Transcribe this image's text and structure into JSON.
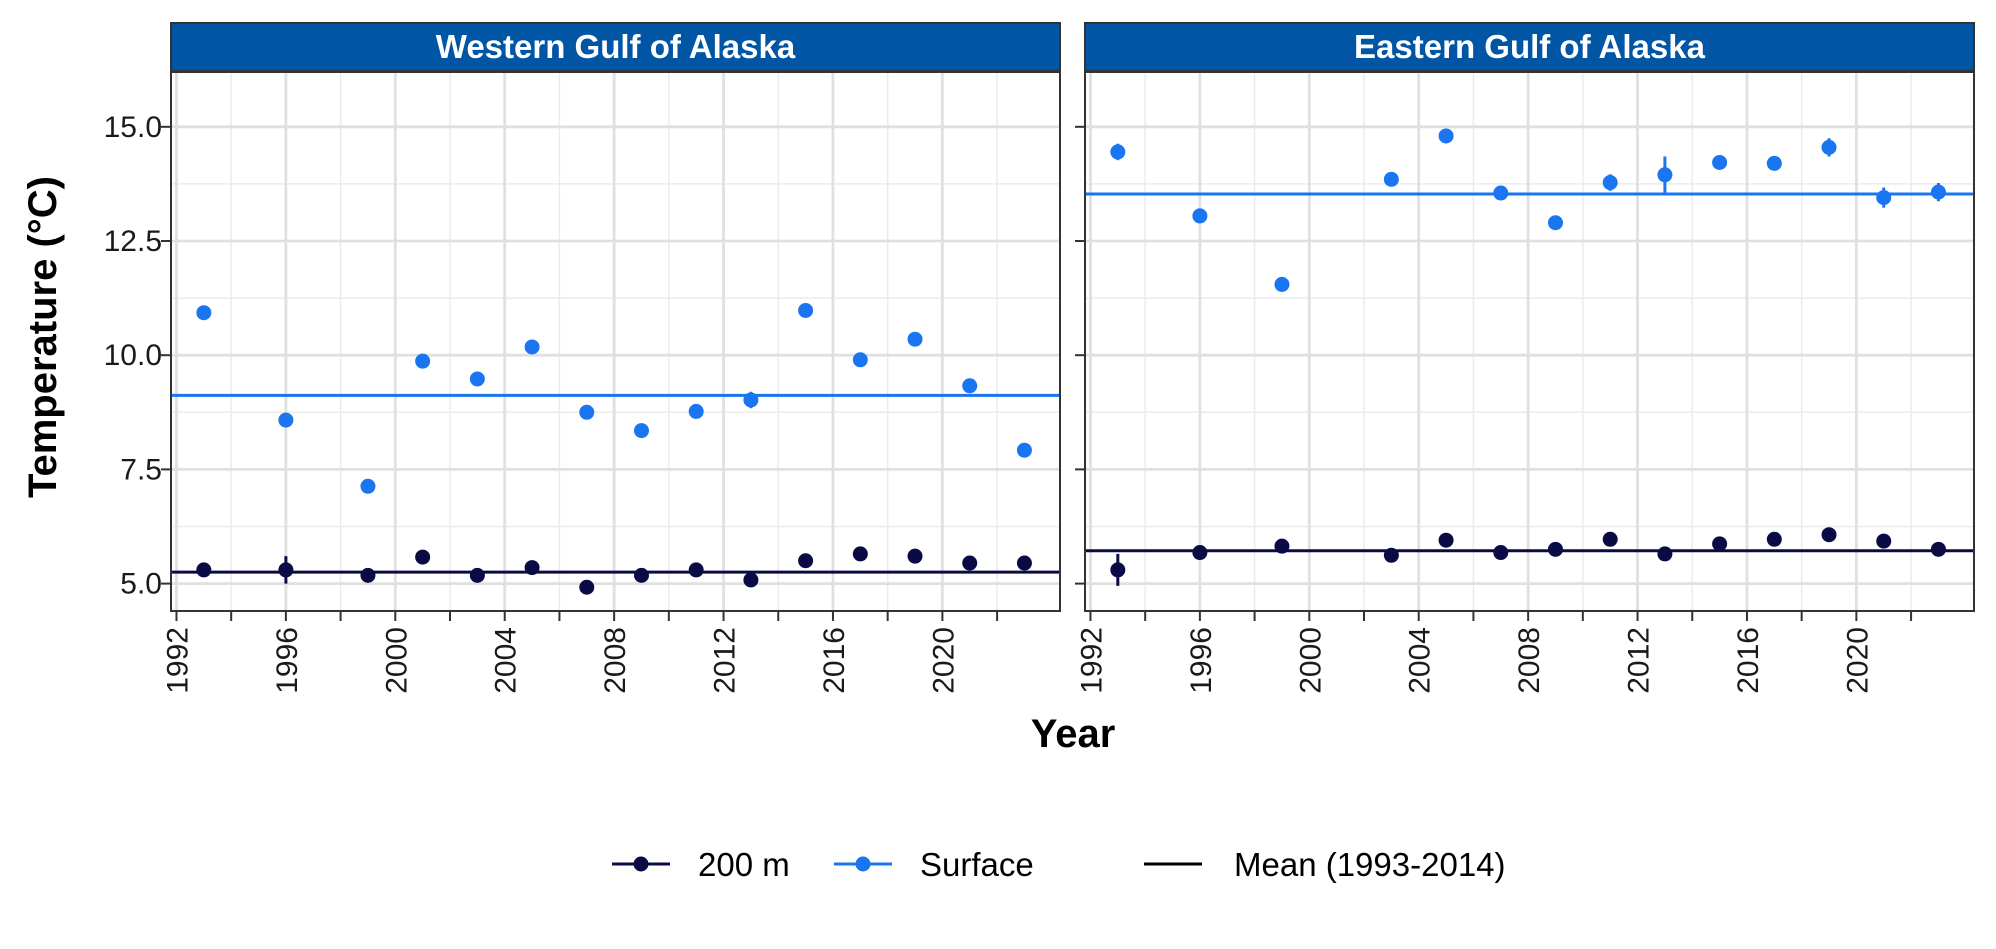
{
  "chart_data": {
    "type": "scatter",
    "ylabel": "Temperature (°C)",
    "xlabel": "Year",
    "xlim": [
      1991.8,
      2024.3
    ],
    "ylim": [
      4.4,
      16.2
    ],
    "yticks": [
      5.0,
      7.5,
      10.0,
      12.5,
      15.0
    ],
    "ytick_labels": [
      "5.0",
      "7.5",
      "10.0",
      "12.5",
      "15.0"
    ],
    "xticks": [
      1992,
      1996,
      2000,
      2004,
      2008,
      2012,
      2016,
      2020
    ],
    "xtick_labels": [
      "1992",
      "1996",
      "2000",
      "2004",
      "2008",
      "2012",
      "2016",
      "2020"
    ],
    "grid": true,
    "legend_position": "bottom",
    "colors": {
      "surface": "#1a75f0",
      "deep": "#0a0a45",
      "strip": "#0055a5"
    },
    "legend": [
      {
        "label": "200 m",
        "key": "deep"
      },
      {
        "label": "Surface",
        "key": "surface"
      },
      {
        "label": "Mean (1993-2014)",
        "key": "mean"
      }
    ],
    "panels": [
      {
        "title": "Western Gulf of Alaska",
        "series": [
          {
            "name": "Surface",
            "points": [
              {
                "x": 1993,
                "y": 10.93,
                "err": 0.08
              },
              {
                "x": 1996,
                "y": 8.58,
                "err": 0.08
              },
              {
                "x": 1999,
                "y": 7.13,
                "err": 0.15
              },
              {
                "x": 2001,
                "y": 9.87,
                "err": 0.1
              },
              {
                "x": 2003,
                "y": 9.48,
                "err": 0.08
              },
              {
                "x": 2005,
                "y": 10.18,
                "err": 0.15
              },
              {
                "x": 2007,
                "y": 8.75,
                "err": 0.08
              },
              {
                "x": 2009,
                "y": 8.35,
                "err": 0.12
              },
              {
                "x": 2011,
                "y": 8.77,
                "err": 0.12
              },
              {
                "x": 2013,
                "y": 9.02,
                "err": 0.18
              },
              {
                "x": 2015,
                "y": 10.98,
                "err": 0.08
              },
              {
                "x": 2017,
                "y": 9.9,
                "err": 0.08
              },
              {
                "x": 2019,
                "y": 10.35,
                "err": 0.15
              },
              {
                "x": 2021,
                "y": 9.33,
                "err": 0.12
              },
              {
                "x": 2023,
                "y": 7.92,
                "err": 0.08
              }
            ]
          },
          {
            "name": "200 m",
            "points": [
              {
                "x": 1993,
                "y": 5.3,
                "err": 0.05
              },
              {
                "x": 1996,
                "y": 5.3,
                "err": 0.3
              },
              {
                "x": 1999,
                "y": 5.18,
                "err": 0.05
              },
              {
                "x": 2001,
                "y": 5.58,
                "err": 0.05
              },
              {
                "x": 2003,
                "y": 5.18,
                "err": 0.05
              },
              {
                "x": 2005,
                "y": 5.35,
                "err": 0.05
              },
              {
                "x": 2007,
                "y": 4.92,
                "err": 0.05
              },
              {
                "x": 2009,
                "y": 5.18,
                "err": 0.05
              },
              {
                "x": 2011,
                "y": 5.3,
                "err": 0.05
              },
              {
                "x": 2013,
                "y": 5.08,
                "err": 0.05
              },
              {
                "x": 2015,
                "y": 5.5,
                "err": 0.05
              },
              {
                "x": 2017,
                "y": 5.65,
                "err": 0.05
              },
              {
                "x": 2019,
                "y": 5.6,
                "err": 0.05
              },
              {
                "x": 2021,
                "y": 5.45,
                "err": 0.05
              },
              {
                "x": 2023,
                "y": 5.45,
                "err": 0.05
              }
            ]
          }
        ],
        "means": {
          "surface": 9.12,
          "deep": 5.25
        }
      },
      {
        "title": "Eastern Gulf of Alaska",
        "series": [
          {
            "name": "Surface",
            "points": [
              {
                "x": 1993,
                "y": 14.45,
                "err": 0.18
              },
              {
                "x": 1996,
                "y": 13.05,
                "err": 0.08
              },
              {
                "x": 1999,
                "y": 11.55,
                "err": 0.08
              },
              {
                "x": 2003,
                "y": 13.85,
                "err": 0.12
              },
              {
                "x": 2005,
                "y": 14.8,
                "err": 0.08
              },
              {
                "x": 2007,
                "y": 13.55,
                "err": 0.08
              },
              {
                "x": 2009,
                "y": 12.9,
                "err": 0.15
              },
              {
                "x": 2011,
                "y": 13.78,
                "err": 0.18
              },
              {
                "x": 2013,
                "y": 13.95,
                "err": 0.4
              },
              {
                "x": 2015,
                "y": 14.22,
                "err": 0.08
              },
              {
                "x": 2017,
                "y": 14.2,
                "err": 0.08
              },
              {
                "x": 2019,
                "y": 14.55,
                "err": 0.2
              },
              {
                "x": 2021,
                "y": 13.45,
                "err": 0.22
              },
              {
                "x": 2023,
                "y": 13.57,
                "err": 0.2
              }
            ]
          },
          {
            "name": "200 m",
            "points": [
              {
                "x": 1993,
                "y": 5.3,
                "err": 0.35
              },
              {
                "x": 1996,
                "y": 5.68,
                "err": 0.05
              },
              {
                "x": 1999,
                "y": 5.82,
                "err": 0.05
              },
              {
                "x": 2003,
                "y": 5.62,
                "err": 0.05
              },
              {
                "x": 2005,
                "y": 5.95,
                "err": 0.05
              },
              {
                "x": 2007,
                "y": 5.68,
                "err": 0.05
              },
              {
                "x": 2009,
                "y": 5.75,
                "err": 0.05
              },
              {
                "x": 2011,
                "y": 5.97,
                "err": 0.05
              },
              {
                "x": 2013,
                "y": 5.65,
                "err": 0.05
              },
              {
                "x": 2015,
                "y": 5.87,
                "err": 0.05
              },
              {
                "x": 2017,
                "y": 5.97,
                "err": 0.05
              },
              {
                "x": 2019,
                "y": 6.07,
                "err": 0.05
              },
              {
                "x": 2021,
                "y": 5.93,
                "err": 0.05
              },
              {
                "x": 2023,
                "y": 5.75,
                "err": 0.05
              }
            ]
          }
        ],
        "means": {
          "surface": 13.53,
          "deep": 5.72
        }
      }
    ]
  }
}
